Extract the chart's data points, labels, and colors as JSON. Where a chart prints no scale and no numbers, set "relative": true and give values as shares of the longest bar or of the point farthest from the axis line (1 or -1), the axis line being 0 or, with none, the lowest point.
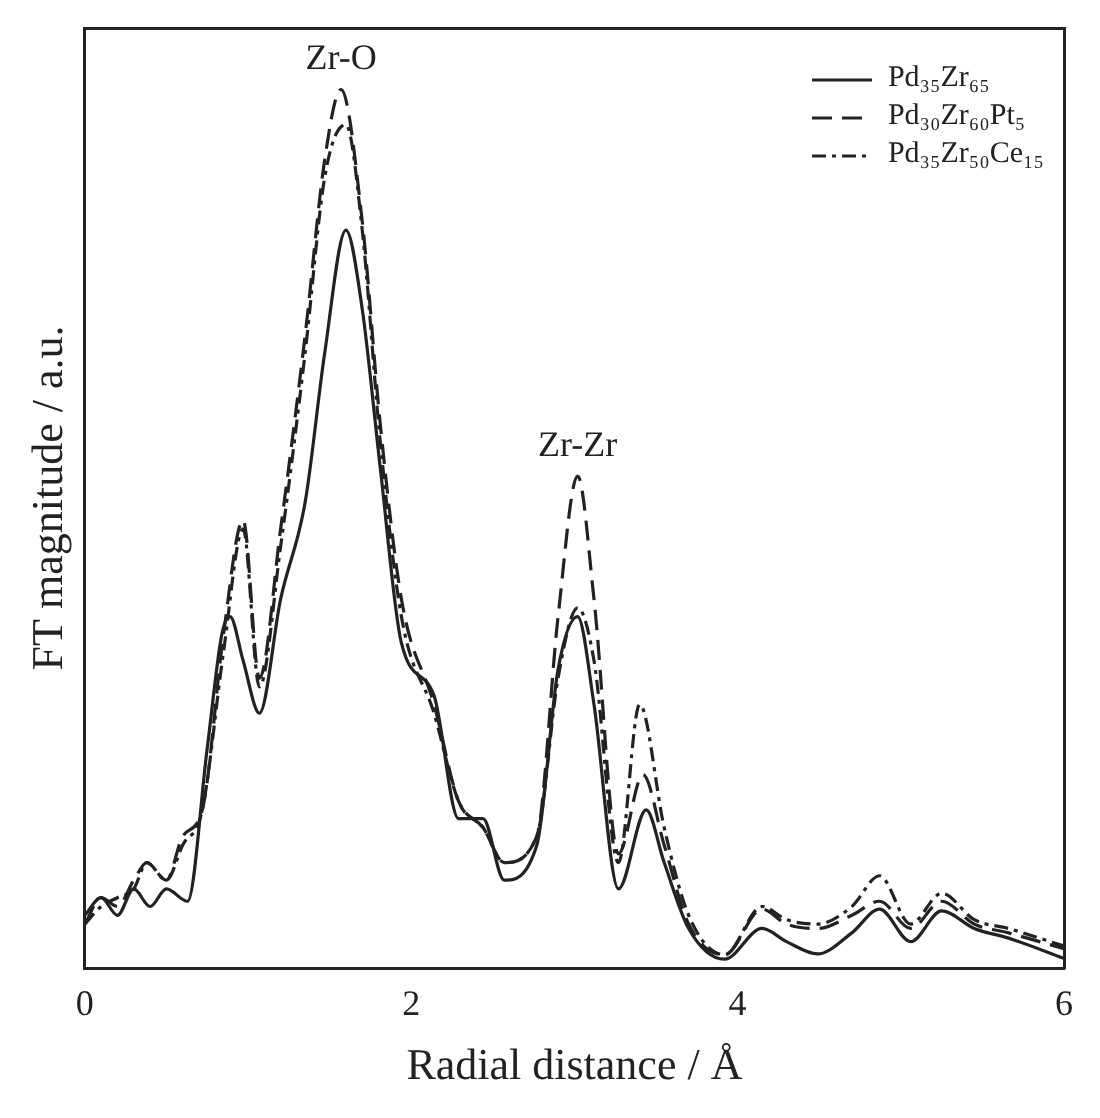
{
  "chart_data": {
    "type": "line",
    "relative": true,
    "xlabel": "Radial distance / Å",
    "ylabel": "FT magnitude / a.u.",
    "xlim": [
      0,
      6
    ],
    "xticks": [
      0,
      2,
      4,
      6
    ],
    "tick_labels": "x",
    "grid": false,
    "legend": "top right",
    "marker": "none",
    "annotations": [
      {
        "text": "Zr-O",
        "x": 1.57,
        "y": 1
      },
      {
        "text": "Zr-Zr",
        "x": 3.02,
        "y": 0.56
      }
    ],
    "series": [
      {
        "name": "Pd₃₅Zr₆₅",
        "color": "#222222",
        "line_style": "solid",
        "x": [
          0,
          0.1,
          0.2,
          0.3,
          0.4,
          0.5,
          0.63,
          0.75,
          0.84,
          0.89,
          0.97,
          1.07,
          1.2,
          1.35,
          1.47,
          1.6,
          1.7,
          1.81,
          1.94,
          2.14,
          2.29,
          2.44,
          2.57,
          2.77,
          2.9,
          3.02,
          3.12,
          3.27,
          3.44,
          3.55,
          3.7,
          3.92,
          4.15,
          4.3,
          4.49,
          4.7,
          4.87,
          5.06,
          5.25,
          5.45,
          5.66,
          6
        ],
        "values": [
          0.06,
          0.08,
          0.06,
          0.09,
          0.07,
          0.09,
          0.076,
          0.25,
          0.38,
          0.4,
          0.35,
          0.29,
          0.42,
          0.53,
          0.7,
          0.84,
          0.75,
          0.57,
          0.37,
          0.31,
          0.17,
          0.17,
          0.1,
          0.14,
          0.34,
          0.4,
          0.3,
          0.09,
          0.18,
          0.12,
          0.045,
          0.01,
          0.045,
          0.03,
          0.016,
          0.04,
          0.067,
          0.03,
          0.065,
          0.045,
          0.034,
          0.011
        ]
      },
      {
        "name": "Pd₃₀Zr₆₀Pt₅",
        "color": "#222222",
        "line_style": "dashed",
        "x": [
          0,
          0.1,
          0.2,
          0.3,
          0.38,
          0.5,
          0.6,
          0.72,
          0.85,
          0.97,
          1.07,
          1.2,
          1.35,
          1.47,
          1.57,
          1.7,
          1.81,
          1.94,
          2.14,
          2.29,
          2.44,
          2.57,
          2.77,
          2.9,
          3.02,
          3.12,
          3.27,
          3.42,
          3.55,
          3.7,
          3.92,
          4.15,
          4.3,
          4.49,
          4.7,
          4.87,
          5.06,
          5.25,
          5.45,
          5.66,
          6
        ],
        "values": [
          0.05,
          0.08,
          0.07,
          0.1,
          0.12,
          0.1,
          0.15,
          0.18,
          0.38,
          0.51,
          0.33,
          0.5,
          0.72,
          0.92,
          1,
          0.85,
          0.62,
          0.42,
          0.3,
          0.19,
          0.16,
          0.12,
          0.15,
          0.4,
          0.56,
          0.42,
          0.13,
          0.22,
          0.14,
          0.05,
          0.015,
          0.067,
          0.05,
          0.045,
          0.06,
          0.076,
          0.045,
          0.076,
          0.05,
          0.04,
          0.022
        ]
      },
      {
        "name": "Pd₃₅Zr₅₀Ce₁₅",
        "color": "#222222",
        "line_style": "dotted",
        "x": [
          0,
          0.1,
          0.2,
          0.3,
          0.38,
          0.5,
          0.6,
          0.72,
          0.85,
          0.97,
          1.07,
          1.2,
          1.35,
          1.47,
          1.6,
          1.7,
          1.81,
          1.94,
          2.14,
          2.29,
          2.44,
          2.57,
          2.77,
          2.9,
          3.02,
          3.12,
          3.27,
          3.4,
          3.55,
          3.7,
          3.92,
          4.15,
          4.3,
          4.49,
          4.7,
          4.87,
          5.06,
          5.25,
          5.45,
          5.66,
          6
        ],
        "values": [
          0.05,
          0.07,
          0.08,
          0.09,
          0.12,
          0.1,
          0.14,
          0.18,
          0.36,
          0.5,
          0.32,
          0.48,
          0.7,
          0.9,
          0.96,
          0.84,
          0.6,
          0.4,
          0.29,
          0.19,
          0.16,
          0.12,
          0.15,
          0.33,
          0.41,
          0.35,
          0.12,
          0.3,
          0.16,
          0.06,
          0.015,
          0.07,
          0.055,
          0.05,
          0.07,
          0.105,
          0.05,
          0.085,
          0.055,
          0.045,
          0.025
        ]
      }
    ]
  }
}
